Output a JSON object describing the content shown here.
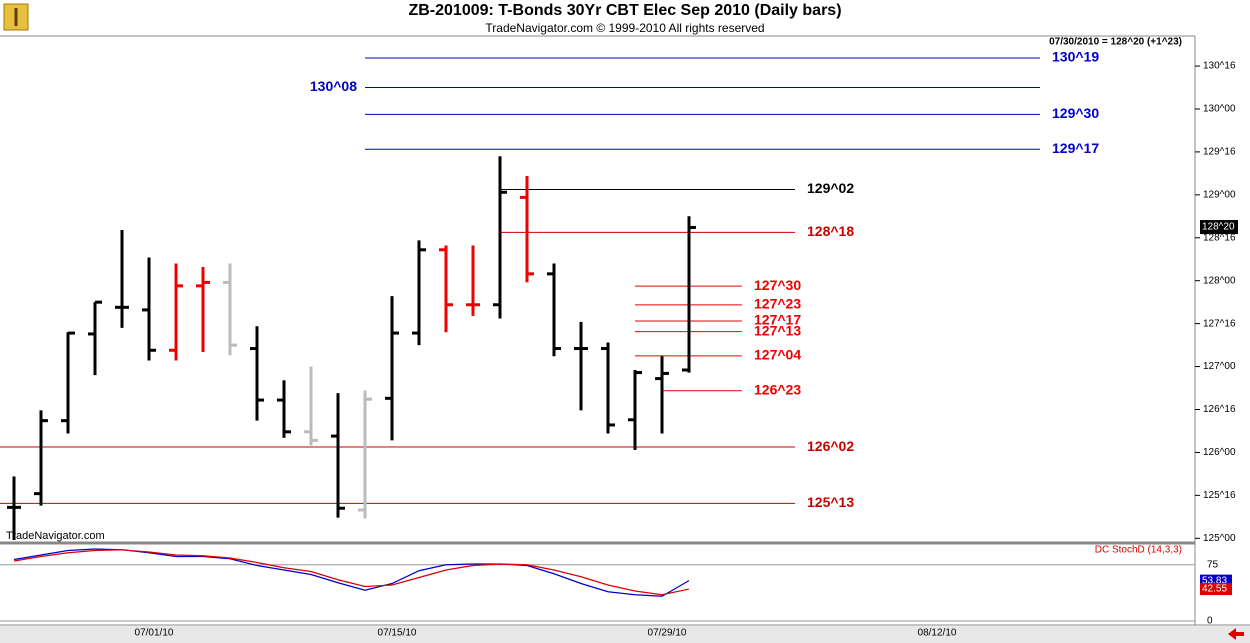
{
  "header": {
    "info": "07/30/2010 = 128^20 (+1^23)",
    "watermark": "TradeNavigator.com"
  },
  "chart_data": [
    {
      "type": "ohlc",
      "title": "ZB-201009:  T-Bonds 30Yr CBT Elec Sep 2010  (Daily bars)",
      "subtitle": "TradeNavigator.com © 1999-2010 All rights reserved",
      "categories": [
        null,
        null,
        null,
        null,
        null,
        "07/01/10",
        null,
        null,
        null,
        null,
        null,
        null,
        null,
        null,
        "07/15/10",
        null,
        null,
        null,
        null,
        null,
        null,
        null,
        null,
        null,
        "07/29/10",
        null,
        null,
        null,
        null,
        null,
        null,
        null,
        null,
        null,
        "08/12/10"
      ],
      "open": [
        125.36,
        125.52,
        126.37,
        127.38,
        127.69,
        127.66,
        127.19,
        127.94,
        127.98,
        127.21,
        126.61,
        126.24,
        126.19,
        125.33,
        126.63,
        127.39,
        128.36,
        127.72,
        127.72,
        128.97,
        128.08,
        127.21,
        127.21,
        126.38,
        126.86,
        126.96,
        null,
        null,
        null,
        null,
        null,
        null,
        null,
        null,
        null
      ],
      "high": [
        125.72,
        126.49,
        127.4,
        127.75,
        128.59,
        128.27,
        128.2,
        128.16,
        128.2,
        127.47,
        126.84,
        127.0,
        126.69,
        126.72,
        127.82,
        128.47,
        128.41,
        128.41,
        129.45,
        129.22,
        128.2,
        127.52,
        127.28,
        126.96,
        127.12,
        128.75,
        null,
        null,
        null,
        null,
        null,
        null,
        null,
        null,
        null
      ],
      "low": [
        124.98,
        125.38,
        126.22,
        126.9,
        127.45,
        127.07,
        127.07,
        127.17,
        127.13,
        126.37,
        126.17,
        126.08,
        125.24,
        125.23,
        126.14,
        127.25,
        127.4,
        127.59,
        127.56,
        127.98,
        127.12,
        126.49,
        126.22,
        126.03,
        126.22,
        126.93,
        null,
        null,
        null,
        null,
        null,
        null,
        null,
        null,
        null
      ],
      "close": [
        125.36,
        126.37,
        127.39,
        127.75,
        127.69,
        127.19,
        127.94,
        127.98,
        127.25,
        126.61,
        126.24,
        126.14,
        125.35,
        126.62,
        127.39,
        128.36,
        127.72,
        127.72,
        129.03,
        128.08,
        127.21,
        127.21,
        126.32,
        126.93,
        126.92,
        128.62,
        null,
        null,
        null,
        null,
        null,
        null,
        null,
        null,
        null
      ],
      "bar_colors": [
        "#000000",
        "#000000",
        "#000000",
        "#000000",
        "#000000",
        "#000000",
        "#ee0000",
        "#ee0000",
        "#bbbbbb",
        "#000000",
        "#000000",
        "#bbbbbb",
        "#000000",
        "#bbbbbb",
        "#000000",
        "#000000",
        "#ee0000",
        "#ee0000",
        "#000000",
        "#ee0000",
        "#000000",
        "#000000",
        "#000000",
        "#000000",
        "#000000",
        "#000000",
        null,
        null,
        null,
        null,
        null,
        null,
        null,
        null,
        null
      ],
      "ylim": [
        124.98,
        130.85
      ],
      "yticks": [
        {
          "value": 125,
          "label": "125^00"
        },
        {
          "value": 125.5,
          "label": "125^16"
        },
        {
          "value": 126,
          "label": "126^00"
        },
        {
          "value": 126.5,
          "label": "126^16"
        },
        {
          "value": 127,
          "label": "127^00"
        },
        {
          "value": 127.5,
          "label": "127^16"
        },
        {
          "value": 128,
          "label": "128^00"
        },
        {
          "value": 128.5,
          "label": "128^16"
        },
        {
          "value": 129,
          "label": "129^00"
        },
        {
          "value": 129.5,
          "label": "129^16"
        },
        {
          "value": 130,
          "label": "130^00"
        },
        {
          "value": 130.5,
          "label": "130^16"
        }
      ],
      "levels": [
        {
          "label": "130^19",
          "value": 130.59375,
          "color": "#0000cc"
        },
        {
          "label": "130^08",
          "value": 130.25,
          "color": "#0000cc"
        },
        {
          "label": "129^30",
          "value": 129.9375,
          "color": "#0000cc"
        },
        {
          "label": "129^17",
          "value": 129.53125,
          "color": "#0000cc"
        },
        {
          "label": "129^02",
          "value": 129.0625,
          "color": "#000000"
        },
        {
          "label": "128^18",
          "value": 128.5625,
          "color": "#cc0000"
        },
        {
          "label": "127^30",
          "value": 127.9375,
          "color": "#ee0000"
        },
        {
          "label": "127^23",
          "value": 127.71875,
          "color": "#ee0000"
        },
        {
          "label": "127^17",
          "value": 127.53125,
          "color": "#ee0000"
        },
        {
          "label": "127^13",
          "value": 127.40625,
          "color": "#ee0000"
        },
        {
          "label": "127^04",
          "value": 127.125,
          "color": "#ee0000"
        },
        {
          "label": "126^23",
          "value": 126.71875,
          "color": "#ee0000"
        },
        {
          "label": "126^02",
          "value": 126.0625,
          "color": "#cc0000"
        },
        {
          "label": "125^13",
          "value": 125.40625,
          "color": "#cc0000"
        }
      ],
      "last_price": {
        "value": 128.625,
        "label": "128^20"
      }
    },
    {
      "type": "line",
      "title": "DC StochD (14,3,3)",
      "ylim": [
        0,
        100
      ],
      "yticks": [
        0,
        75
      ],
      "series": [
        {
          "color": "#0000cc",
          "values": [
            82,
            88,
            94,
            96,
            95,
            91,
            86,
            86,
            83,
            74,
            68,
            62,
            51,
            41,
            50,
            67,
            75,
            76,
            76,
            74,
            63,
            50,
            39,
            35,
            33,
            53.83,
            null,
            null,
            null,
            null,
            null,
            null,
            null,
            null,
            null
          ]
        },
        {
          "color": "#dd0000",
          "values": [
            80,
            86,
            91,
            94,
            95,
            92,
            88,
            87,
            84,
            78,
            71,
            66,
            55,
            46,
            48,
            58,
            68,
            74,
            76,
            75,
            68,
            59,
            48,
            40,
            35,
            42.55,
            null,
            null,
            null,
            null,
            null,
            null,
            null,
            null,
            null
          ]
        }
      ]
    }
  ]
}
